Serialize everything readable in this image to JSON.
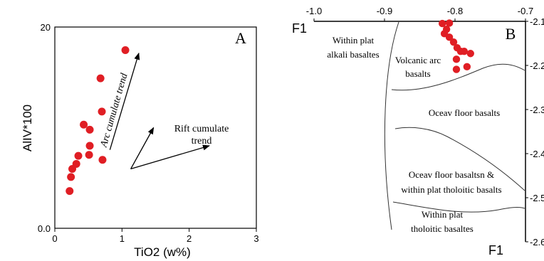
{
  "colors": {
    "point": "#e01e24",
    "axis": "#000000",
    "curve": "#333333"
  },
  "chart_data": [
    {
      "type": "scatter",
      "panel_label": "A",
      "xlabel": "TiO2 (w%)",
      "ylabel": "AlIV*100",
      "xlim": [
        0,
        3
      ],
      "ylim": [
        0,
        20
      ],
      "x_ticks": [
        "0",
        "1",
        "2",
        "3"
      ],
      "y_ticks": [
        "0.0",
        "20"
      ],
      "points": [
        {
          "x": 0.22,
          "y": 3.7
        },
        {
          "x": 0.24,
          "y": 5.1
        },
        {
          "x": 0.26,
          "y": 5.9
        },
        {
          "x": 0.32,
          "y": 6.4
        },
        {
          "x": 0.35,
          "y": 7.2
        },
        {
          "x": 0.51,
          "y": 7.3
        },
        {
          "x": 0.52,
          "y": 8.2
        },
        {
          "x": 0.71,
          "y": 6.8
        },
        {
          "x": 0.43,
          "y": 10.3
        },
        {
          "x": 0.52,
          "y": 9.8
        },
        {
          "x": 0.7,
          "y": 11.6
        },
        {
          "x": 0.68,
          "y": 14.9
        },
        {
          "x": 1.05,
          "y": 17.7
        }
      ],
      "annotations": [
        "Arc cumulate trend",
        "Rift cumulate",
        "trend"
      ],
      "arrows": [
        {
          "from": [
            0.82,
            7.8
          ],
          "to": [
            1.25,
            17.4
          ]
        },
        {
          "from": [
            1.13,
            5.9
          ],
          "to": [
            1.47,
            10.0
          ]
        },
        {
          "from": [
            1.13,
            5.9
          ],
          "to": [
            2.3,
            8.2
          ]
        }
      ]
    },
    {
      "type": "scatter",
      "panel_label": "B",
      "xlabel": "F1",
      "ylabel": "F1",
      "xlim": [
        -1.0,
        -0.7
      ],
      "ylim": [
        -2.6,
        -2.1
      ],
      "x_ticks": [
        "-1.0",
        "-0.9",
        "-0.8",
        "-0.7"
      ],
      "y_ticks": [
        "-2.1",
        "-2.2",
        "-2.3",
        "-2.4",
        "-2.5",
        "-2.6"
      ],
      "points": [
        {
          "x": -0.818,
          "y": -2.105
        },
        {
          "x": -0.808,
          "y": -2.104
        },
        {
          "x": -0.812,
          "y": -2.118
        },
        {
          "x": -0.815,
          "y": -2.128
        },
        {
          "x": -0.808,
          "y": -2.136
        },
        {
          "x": -0.802,
          "y": -2.147
        },
        {
          "x": -0.797,
          "y": -2.16
        },
        {
          "x": -0.792,
          "y": -2.168
        },
        {
          "x": -0.787,
          "y": -2.168
        },
        {
          "x": -0.778,
          "y": -2.173
        },
        {
          "x": -0.798,
          "y": -2.186
        },
        {
          "x": -0.783,
          "y": -2.203
        },
        {
          "x": -0.798,
          "y": -2.209
        }
      ],
      "regions": [
        "Within plat",
        "alkali basaltes",
        "Volcanic arc",
        "basalts",
        "Oceav floor basalts",
        "Oceav floor basaltsn &",
        "within plat tholoitic basalts",
        "Within plat",
        "tholoitic basaltes"
      ]
    }
  ]
}
